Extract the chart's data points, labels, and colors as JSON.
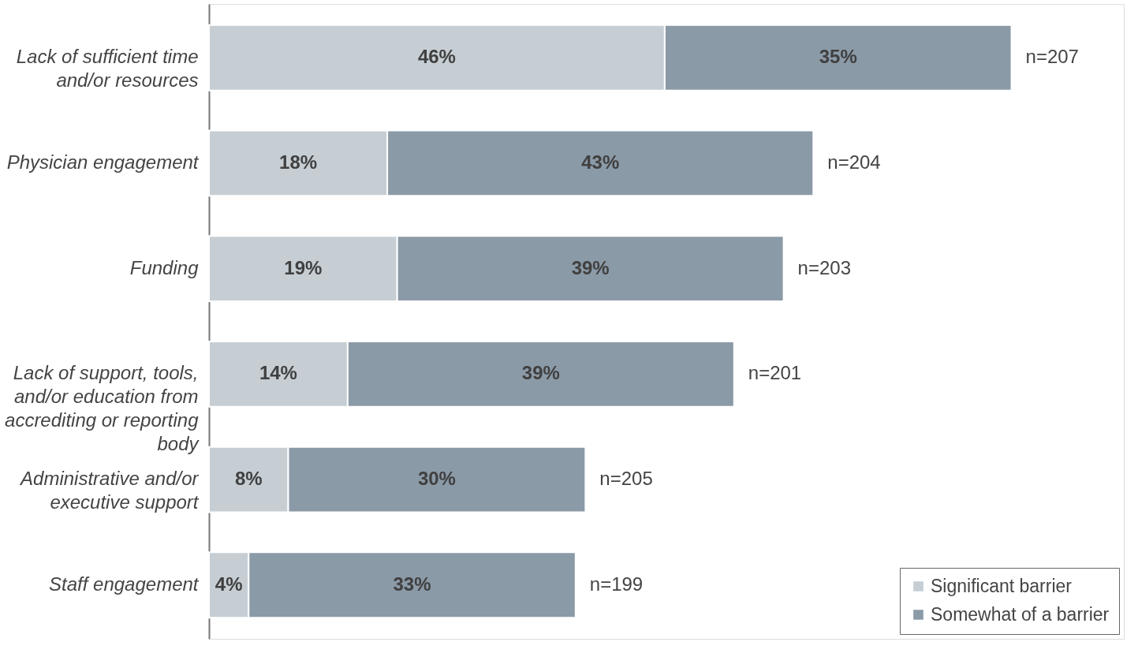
{
  "chart_data": {
    "type": "bar",
    "orientation": "horizontal",
    "stacked": true,
    "categories": [
      "Lack of sufficient time and/or resources",
      "Physician engagement",
      "Funding",
      "Lack of support, tools, and/or education from accrediting or reporting body",
      "Administrative and/or executive support",
      "Staff engagement"
    ],
    "series": [
      {
        "name": "Significant barrier",
        "color": "#c6ced4",
        "values": [
          46,
          18,
          19,
          14,
          8,
          4
        ],
        "value_labels": [
          "46%",
          "18%",
          "19%",
          "14%",
          "8%",
          "4%"
        ]
      },
      {
        "name": "Somewhat of a barrier",
        "color": "#8b9aa7",
        "values": [
          35,
          43,
          39,
          39,
          30,
          33
        ],
        "value_labels": [
          "35%",
          "43%",
          "39%",
          "39%",
          "30%",
          "33%"
        ]
      }
    ],
    "tick_labels": "y",
    "legend": "bottom right",
    "annotations": [
      {
        "text": "n=207",
        "x": 81,
        "y": "Lack of sufficient time and/or resources"
      },
      {
        "text": "n=204",
        "x": 61,
        "y": "Physician engagement"
      },
      {
        "text": "n=203",
        "x": 58,
        "y": "Funding"
      },
      {
        "text": "n=201",
        "x": 53,
        "y": "Lack of support, tools, and/or education from accrediting or reporting body"
      },
      {
        "text": "n=205",
        "x": 38,
        "y": "Administrative and/or executive support"
      },
      {
        "text": "n=199",
        "x": 37,
        "y": "Staff engagement"
      }
    ]
  }
}
